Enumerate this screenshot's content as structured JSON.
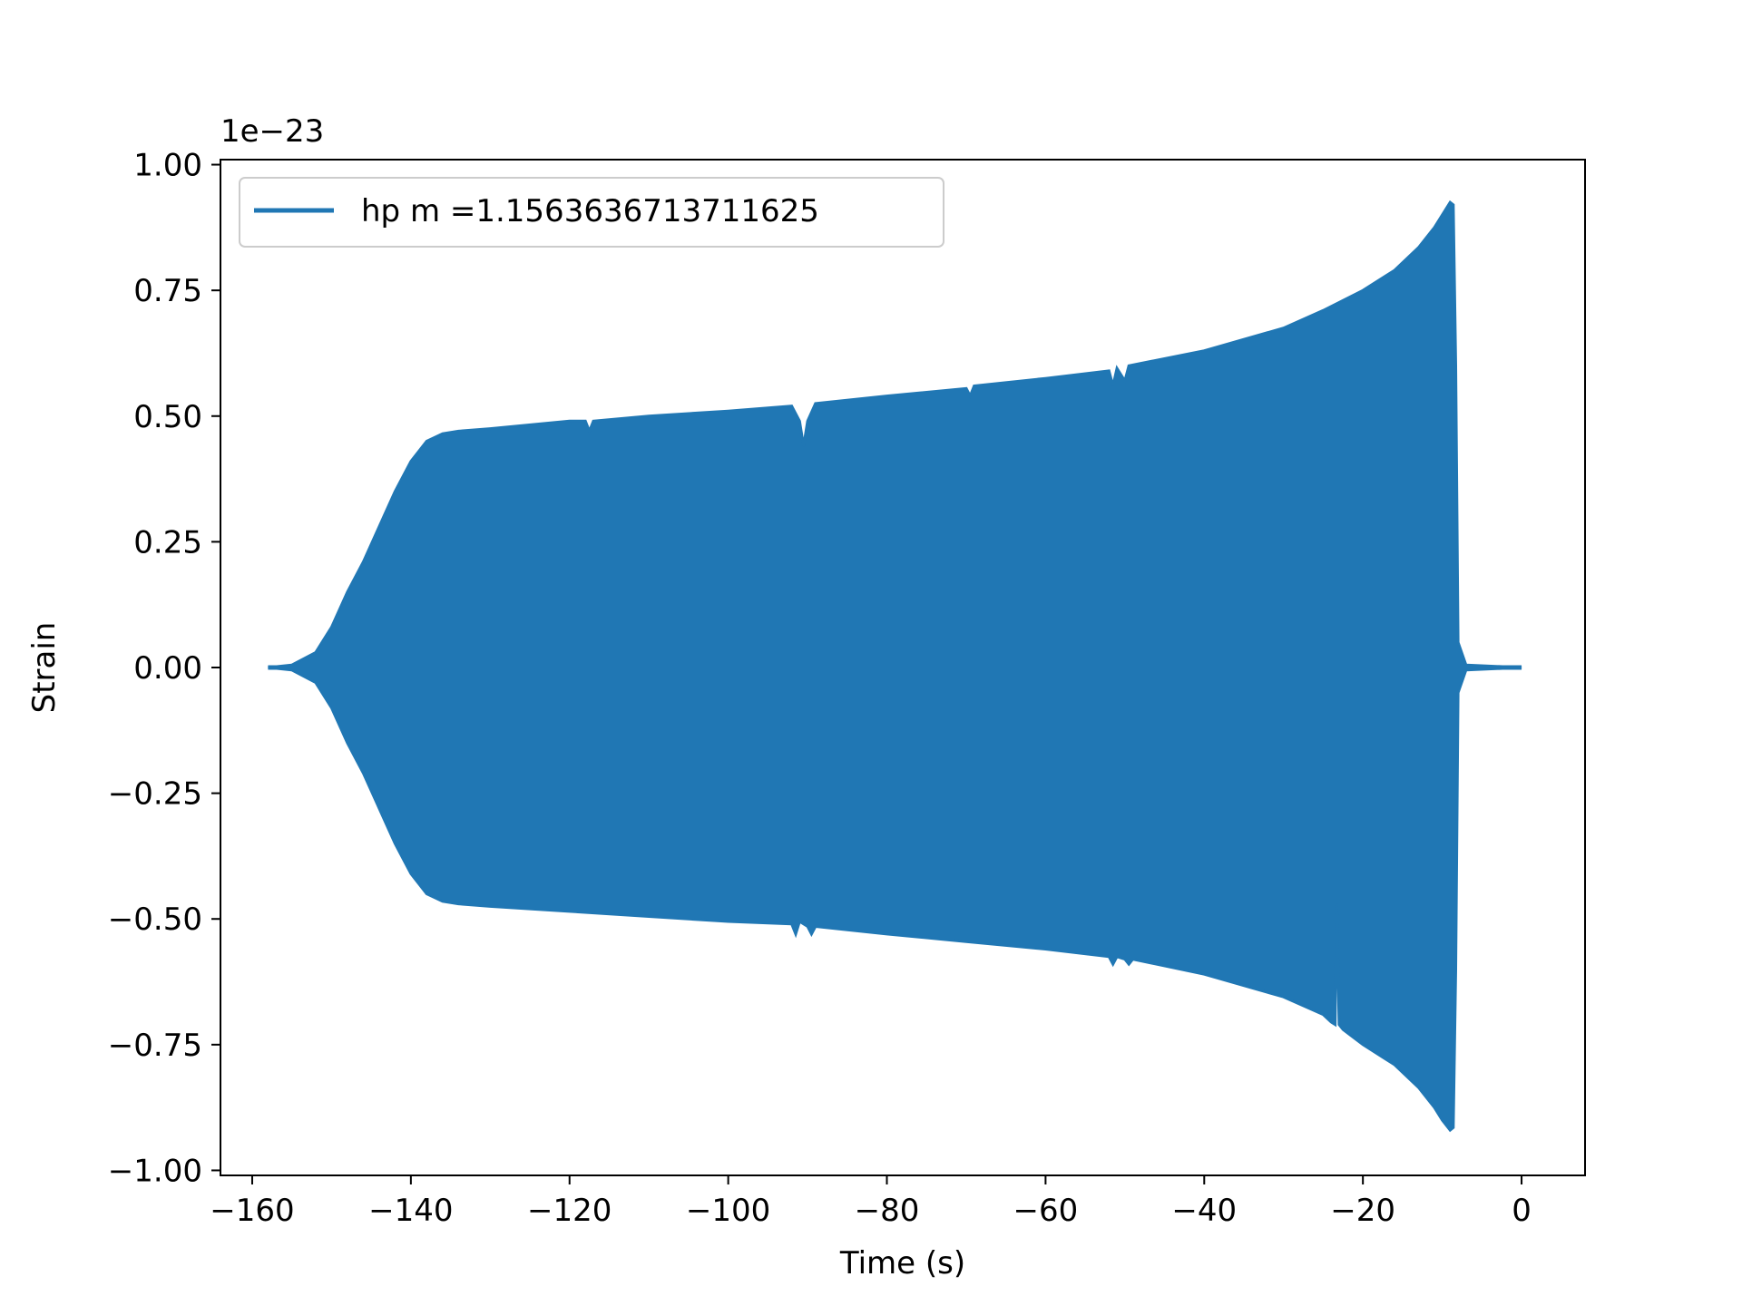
{
  "chart_data": {
    "type": "line",
    "xlabel": "Time (s)",
    "ylabel": "Strain",
    "y_offset_text": "1e−23",
    "xlim": [
      -164,
      8
    ],
    "ylim": [
      -1.01,
      1.01
    ],
    "x_ticks": [
      -160,
      -140,
      -120,
      -100,
      -80,
      -60,
      -40,
      -20,
      0
    ],
    "x_tick_labels": [
      "−160",
      "−140",
      "−120",
      "−100",
      "−80",
      "−60",
      "−40",
      "−20",
      "0"
    ],
    "y_ticks": [
      1.0,
      0.75,
      0.5,
      0.25,
      0.0,
      -0.25,
      -0.5,
      -0.75,
      -1.0
    ],
    "y_tick_labels": [
      "1.00",
      "0.75",
      "0.50",
      "0.25",
      "0.00",
      "−0.25",
      "−0.50",
      "−0.75",
      "−1.00"
    ],
    "legend": {
      "position": "upper-left"
    },
    "grid": false,
    "series": [
      {
        "name": "hp m =1.1563636713711625",
        "color": "#2077b4",
        "envelope_upper": [
          [
            -158,
            0.0
          ],
          [
            -155,
            0.005
          ],
          [
            -152,
            0.03
          ],
          [
            -150,
            0.08
          ],
          [
            -148,
            0.15
          ],
          [
            -146,
            0.21
          ],
          [
            -144,
            0.28
          ],
          [
            -142,
            0.35
          ],
          [
            -140,
            0.41
          ],
          [
            -138,
            0.45
          ],
          [
            -136,
            0.465
          ],
          [
            -134,
            0.47
          ],
          [
            -130,
            0.475
          ],
          [
            -120,
            0.49
          ],
          [
            -118,
            0.49
          ],
          [
            -117.5,
            0.47
          ],
          [
            -117,
            0.49
          ],
          [
            -110,
            0.5
          ],
          [
            -100,
            0.51
          ],
          [
            -92,
            0.52
          ],
          [
            -91,
            0.49
          ],
          [
            -90.5,
            0.44
          ],
          [
            -90,
            0.49
          ],
          [
            -89,
            0.525
          ],
          [
            -80,
            0.54
          ],
          [
            -70,
            0.555
          ],
          [
            -69.5,
            0.54
          ],
          [
            -69,
            0.56
          ],
          [
            -60,
            0.575
          ],
          [
            -52,
            0.59
          ],
          [
            -51.5,
            0.56
          ],
          [
            -51,
            0.595
          ],
          [
            -50,
            0.57
          ],
          [
            -49.5,
            0.6
          ],
          [
            -40,
            0.63
          ],
          [
            -30,
            0.675
          ],
          [
            -25,
            0.71
          ],
          [
            -20,
            0.75
          ],
          [
            -16,
            0.79
          ],
          [
            -13,
            0.835
          ],
          [
            -11,
            0.875
          ],
          [
            -10,
            0.9
          ],
          [
            -9,
            0.925
          ],
          [
            -8.6,
            0.92
          ],
          [
            -8.3,
            0.6
          ],
          [
            -8,
            0.05
          ],
          [
            -7,
            0.005
          ],
          [
            0,
            0.0
          ]
        ],
        "envelope_lower": [
          [
            -158,
            0.0
          ],
          [
            -155,
            -0.005
          ],
          [
            -152,
            -0.03
          ],
          [
            -150,
            -0.08
          ],
          [
            -148,
            -0.15
          ],
          [
            -146,
            -0.21
          ],
          [
            -144,
            -0.28
          ],
          [
            -142,
            -0.35
          ],
          [
            -140,
            -0.41
          ],
          [
            -138,
            -0.45
          ],
          [
            -136,
            -0.465
          ],
          [
            -134,
            -0.47
          ],
          [
            -130,
            -0.475
          ],
          [
            -120,
            -0.485
          ],
          [
            -110,
            -0.495
          ],
          [
            -100,
            -0.505
          ],
          [
            -92,
            -0.51
          ],
          [
            -91.5,
            -0.53
          ],
          [
            -91,
            -0.505
          ],
          [
            -90,
            -0.515
          ],
          [
            -89.5,
            -0.53
          ],
          [
            -89,
            -0.515
          ],
          [
            -80,
            -0.53
          ],
          [
            -70,
            -0.545
          ],
          [
            -60,
            -0.56
          ],
          [
            -52,
            -0.575
          ],
          [
            -51.5,
            -0.59
          ],
          [
            -51,
            -0.575
          ],
          [
            -50,
            -0.58
          ],
          [
            -49.5,
            -0.59
          ],
          [
            -49,
            -0.58
          ],
          [
            -40,
            -0.61
          ],
          [
            -30,
            -0.655
          ],
          [
            -25,
            -0.69
          ],
          [
            -24,
            -0.705
          ],
          [
            -23.5,
            -0.71
          ],
          [
            -23.3,
            -0.47
          ],
          [
            -23,
            -0.71
          ],
          [
            -22.5,
            -0.72
          ],
          [
            -20,
            -0.75
          ],
          [
            -16,
            -0.79
          ],
          [
            -13,
            -0.835
          ],
          [
            -11,
            -0.875
          ],
          [
            -10,
            -0.9
          ],
          [
            -9,
            -0.92
          ],
          [
            -8.6,
            -0.915
          ],
          [
            -8.3,
            -0.6
          ],
          [
            -8,
            -0.05
          ],
          [
            -7,
            -0.005
          ],
          [
            0,
            0.0
          ]
        ]
      }
    ]
  }
}
